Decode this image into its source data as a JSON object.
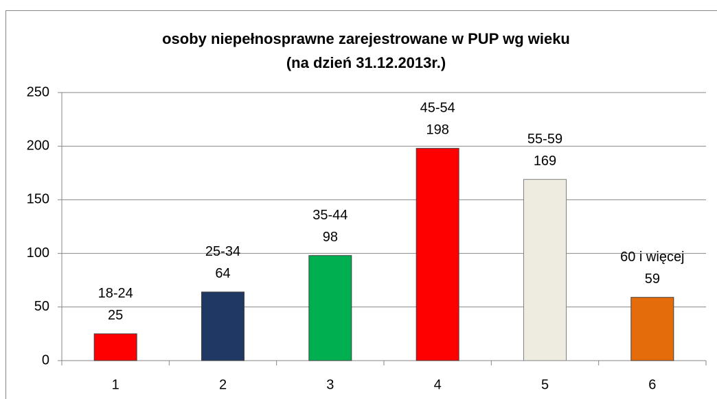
{
  "chart_data": {
    "type": "bar",
    "title": "osoby niepełnosprawne zarejestrowane w PUP wg wieku",
    "subtitle": "(na dzień 31.12.2013r.)",
    "categories": [
      "1",
      "2",
      "3",
      "4",
      "5",
      "6"
    ],
    "labels": [
      "18-24",
      "25-34",
      "35-44",
      "45-54",
      "55-59",
      "60 i więcej"
    ],
    "values": [
      25,
      64,
      98,
      198,
      169,
      59
    ],
    "colors": [
      "#ff0000",
      "#1f3864",
      "#00b050",
      "#ff0000",
      "#eeece1",
      "#e46c0a"
    ],
    "ylim": [
      0,
      250
    ],
    "yticks": [
      0,
      50,
      100,
      150,
      200,
      250
    ],
    "grid": true
  }
}
